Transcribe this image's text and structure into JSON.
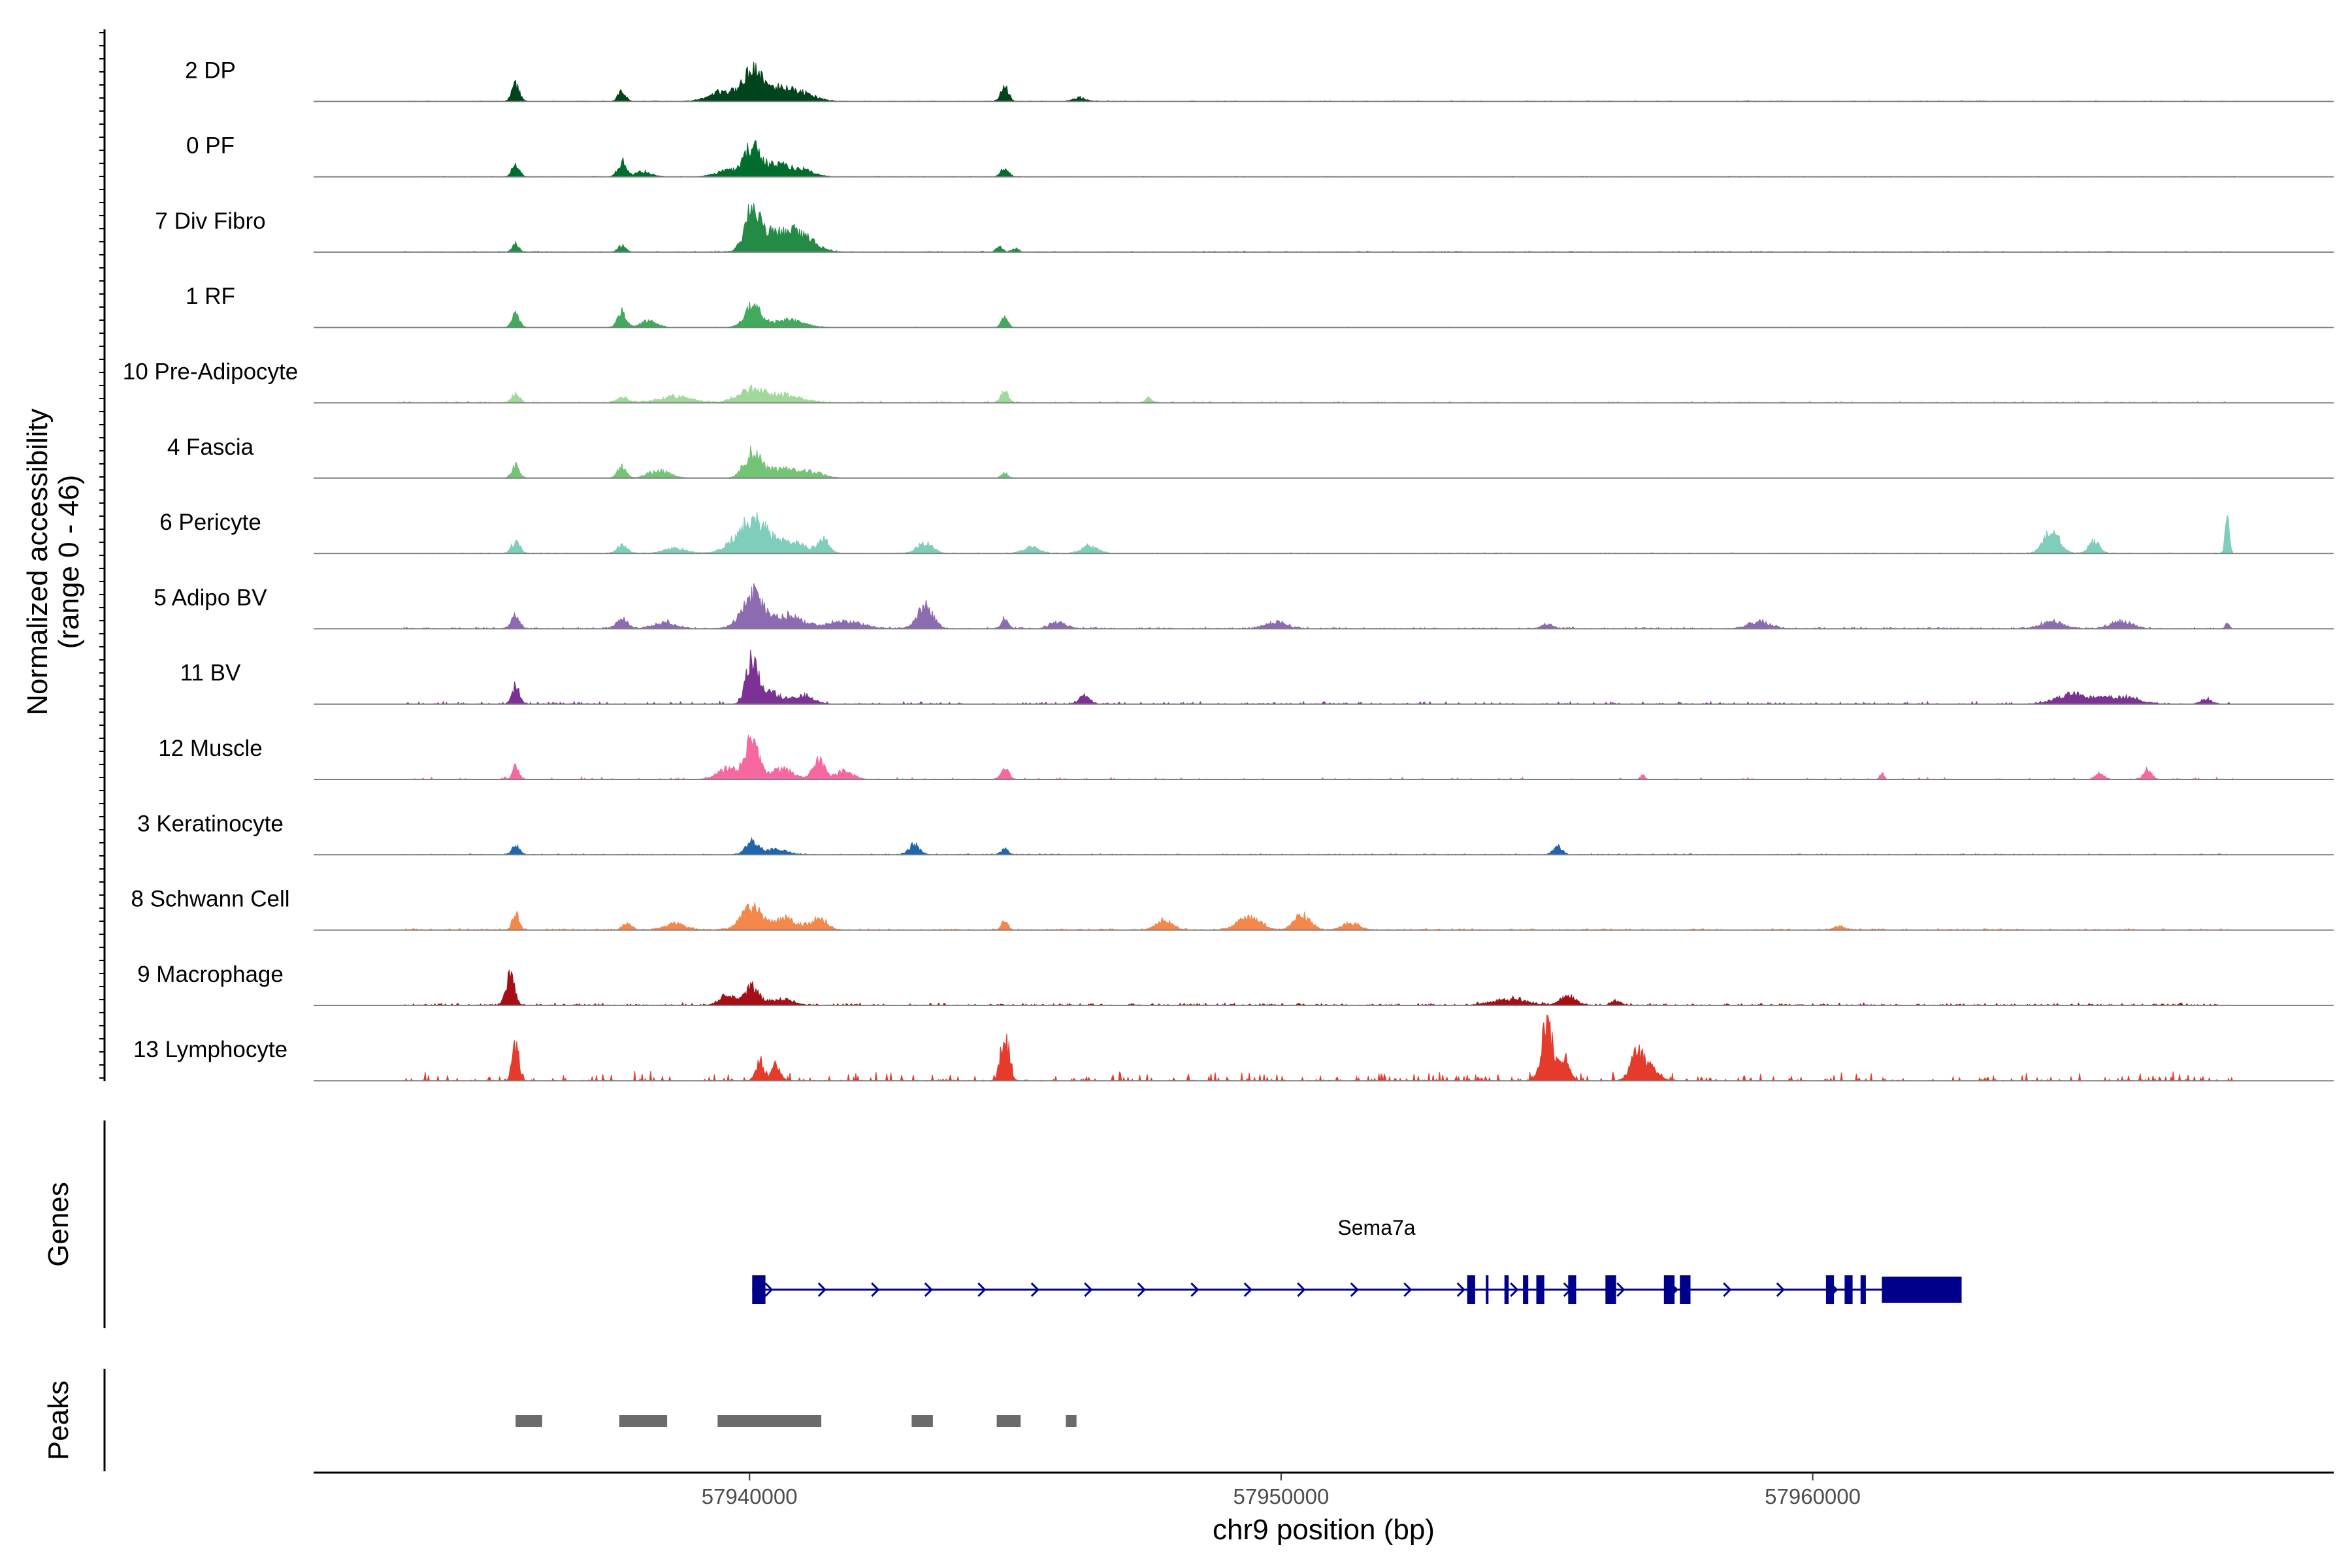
{
  "chart_data": {
    "type": "area",
    "title": "",
    "ylabel_line1": "Normalized accessibility",
    "ylabel_line2": "(range 0 - 46)",
    "xlabel": "chr9 position (bp)",
    "ylim": [
      0,
      46
    ],
    "xlim": [
      57931800,
      57969800
    ],
    "x_ticks": [
      57940000,
      57950000,
      57960000
    ],
    "x_tick_labels": [
      "57940000",
      "57950000",
      "57960000"
    ],
    "genes_label": "Genes",
    "peaks_label": "Peaks",
    "gene": {
      "name": "Sema7a",
      "strand": "+",
      "start": 57940050,
      "end": 57962800,
      "color": "#00008B",
      "exons": [
        [
          57940050,
          57940300
        ],
        [
          57953500,
          57953650
        ],
        [
          57953850,
          57953900
        ],
        [
          57954200,
          57954280
        ],
        [
          57954550,
          57954650
        ],
        [
          57954800,
          57954950
        ],
        [
          57955400,
          57955550
        ],
        [
          57956100,
          57956300
        ],
        [
          57957200,
          57957400
        ],
        [
          57957500,
          57957700
        ],
        [
          57960250,
          57960400
        ],
        [
          57960600,
          57960750
        ],
        [
          57960900,
          57961000
        ],
        [
          57961300,
          57962800
        ]
      ]
    },
    "peaks": [
      [
        57935600,
        57936100
      ],
      [
        57937550,
        57938450
      ],
      [
        57939400,
        57941350
      ],
      [
        57943050,
        57943450
      ],
      [
        57944650,
        57945100
      ],
      [
        57945950,
        57946150
      ]
    ],
    "peak_color": "#6B6B6B",
    "series": [
      {
        "name": "2 DP",
        "color": "#00441B",
        "peaks": [
          [
            57935600,
            13,
            70
          ],
          [
            57937600,
            8,
            70
          ],
          [
            57939500,
            8,
            250
          ],
          [
            57940050,
            21,
            170
          ],
          [
            57940500,
            10,
            300
          ],
          [
            57941000,
            5,
            250
          ],
          [
            57944800,
            12,
            70
          ],
          [
            57946200,
            3,
            120
          ]
        ],
        "noise": 0.6,
        "density": 0.9,
        "range": [
          57933500,
          57968000
        ]
      },
      {
        "name": "0 PF",
        "color": "#006D2C",
        "peaks": [
          [
            57935600,
            10,
            70
          ],
          [
            57937600,
            12,
            80
          ],
          [
            57938000,
            4,
            150
          ],
          [
            57939600,
            5,
            220
          ],
          [
            57940050,
            23,
            140
          ],
          [
            57940500,
            10,
            250
          ],
          [
            57941000,
            5,
            200
          ],
          [
            57944800,
            7,
            70
          ]
        ],
        "noise": 0.5,
        "density": 0.9,
        "range": [
          57933500,
          57968000
        ]
      },
      {
        "name": "7 Div Fibro",
        "color": "#238B45",
        "peaks": [
          [
            57935600,
            7,
            60
          ],
          [
            57937600,
            5,
            70
          ],
          [
            57940050,
            30,
            140
          ],
          [
            57940500,
            15,
            300
          ],
          [
            57941000,
            11,
            250
          ],
          [
            57944700,
            4,
            60
          ],
          [
            57945000,
            3,
            60
          ]
        ],
        "noise": 0.8,
        "density": 0.6,
        "range": [
          57933500,
          57968000
        ]
      },
      {
        "name": "1 RF",
        "color": "#41AB5D",
        "peaks": [
          [
            57935600,
            10,
            70
          ],
          [
            57937600,
            13,
            80
          ],
          [
            57938100,
            5,
            150
          ],
          [
            57940050,
            17,
            150
          ],
          [
            57940700,
            6,
            300
          ],
          [
            57944800,
            8,
            60
          ]
        ],
        "noise": 0.4,
        "density": 0.8,
        "range": [
          57933500,
          57968000
        ]
      },
      {
        "name": "10 Pre-Adipocyte",
        "color": "#A1D99B",
        "peaks": [
          [
            57935600,
            8,
            70
          ],
          [
            57937600,
            4,
            100
          ],
          [
            57938600,
            5,
            300
          ],
          [
            57940050,
            10,
            250
          ],
          [
            57940700,
            6,
            300
          ],
          [
            57944800,
            10,
            70
          ],
          [
            57947500,
            4,
            60
          ]
        ],
        "noise": 1.2,
        "density": 0.6,
        "range": [
          57933300,
          57968000
        ]
      },
      {
        "name": "4 Fascia",
        "color": "#74C476",
        "peaks": [
          [
            57935600,
            10,
            70
          ],
          [
            57937600,
            9,
            80
          ],
          [
            57938300,
            6,
            200
          ],
          [
            57940050,
            20,
            150
          ],
          [
            57940600,
            8,
            300
          ],
          [
            57941200,
            4,
            200
          ],
          [
            57944800,
            4,
            60
          ]
        ],
        "noise": 0.4,
        "density": 0.8,
        "range": [
          57933500,
          57968000
        ]
      },
      {
        "name": "6 Pericyte",
        "color": "#7FCDBB",
        "peaks": [
          [
            57935600,
            10,
            80
          ],
          [
            57937600,
            6,
            100
          ],
          [
            57938600,
            4,
            200
          ],
          [
            57940050,
            26,
            300
          ],
          [
            57940800,
            8,
            300
          ],
          [
            57941400,
            10,
            100
          ],
          [
            57943300,
            8,
            150
          ],
          [
            57945300,
            5,
            150
          ],
          [
            57946400,
            6,
            150
          ],
          [
            57964500,
            17,
            150
          ],
          [
            57965300,
            10,
            100
          ],
          [
            57967800,
            28,
            40
          ]
        ],
        "noise": 0.6,
        "density": 0.8,
        "range": [
          57933500,
          57967900
        ]
      },
      {
        "name": "5 Adipo BV",
        "color": "#8C6BB1",
        "peaks": [
          [
            57935600,
            12,
            70
          ],
          [
            57937600,
            8,
            100
          ],
          [
            57938400,
            5,
            200
          ],
          [
            57940050,
            27,
            200
          ],
          [
            57940700,
            10,
            300
          ],
          [
            57941800,
            6,
            300
          ],
          [
            57943300,
            18,
            150
          ],
          [
            57944800,
            8,
            60
          ],
          [
            57945800,
            5,
            150
          ],
          [
            57949900,
            5,
            200
          ],
          [
            57955000,
            4,
            100
          ],
          [
            57959000,
            6,
            200
          ],
          [
            57964500,
            6,
            200
          ],
          [
            57965800,
            6,
            200
          ],
          [
            57967800,
            4,
            40
          ]
        ],
        "noise": 1.2,
        "density": 0.8,
        "range": [
          57933500,
          57967900
        ]
      },
      {
        "name": "11 BV",
        "color": "#7B3294",
        "peaks": [
          [
            57935600,
            14,
            70
          ],
          [
            57940050,
            35,
            110
          ],
          [
            57940400,
            9,
            200
          ],
          [
            57941000,
            6,
            200
          ],
          [
            57946300,
            6,
            100
          ],
          [
            57964900,
            8,
            300
          ],
          [
            57965800,
            6,
            300
          ],
          [
            57967400,
            4,
            100
          ]
        ],
        "noise": 2.0,
        "density": 0.35,
        "range": [
          57933500,
          57967900
        ]
      },
      {
        "name": "12 Muscle",
        "color": "#F768A1",
        "peaks": [
          [
            57935600,
            11,
            60
          ],
          [
            57939600,
            9,
            200
          ],
          [
            57940050,
            35,
            120
          ],
          [
            57940600,
            9,
            200
          ],
          [
            57941300,
            15,
            120
          ],
          [
            57941800,
            7,
            150
          ],
          [
            57944800,
            8,
            80
          ],
          [
            57956800,
            4,
            40
          ],
          [
            57961300,
            5,
            40
          ],
          [
            57965400,
            5,
            80
          ],
          [
            57966300,
            7,
            80
          ]
        ],
        "noise": 2.0,
        "density": 0.15,
        "range": [
          57933500,
          57967900
        ]
      },
      {
        "name": "3 Keratinocyte",
        "color": "#2166AC",
        "peaks": [
          [
            57935600,
            7,
            70
          ],
          [
            57940050,
            10,
            120
          ],
          [
            57940500,
            4,
            200
          ],
          [
            57943100,
            8,
            100
          ],
          [
            57944800,
            5,
            60
          ],
          [
            57955200,
            7,
            80
          ]
        ],
        "noise": 0.8,
        "density": 0.9,
        "range": [
          57933500,
          57967900
        ]
      },
      {
        "name": "8 Schwann Cell",
        "color": "#F4874A",
        "peaks": [
          [
            57935600,
            14,
            60
          ],
          [
            57937700,
            6,
            80
          ],
          [
            57938600,
            5,
            200
          ],
          [
            57940050,
            18,
            200
          ],
          [
            57940700,
            9,
            200
          ],
          [
            57941300,
            9,
            150
          ],
          [
            57944800,
            8,
            60
          ],
          [
            57947800,
            8,
            150
          ],
          [
            57949400,
            11,
            200
          ],
          [
            57950400,
            12,
            150
          ],
          [
            57951300,
            6,
            150
          ],
          [
            57960500,
            3,
            100
          ]
        ],
        "noise": 1.2,
        "density": 0.6,
        "range": [
          57933500,
          57967900
        ]
      },
      {
        "name": "9 Macrophage",
        "color": "#A50F15",
        "peaks": [
          [
            57935500,
            23,
            80
          ],
          [
            57939600,
            8,
            150
          ],
          [
            57940050,
            15,
            120
          ],
          [
            57940600,
            5,
            200
          ],
          [
            57954300,
            5,
            300
          ],
          [
            57955400,
            7,
            150
          ],
          [
            57956300,
            4,
            80
          ]
        ],
        "noise": 2.0,
        "density": 0.45,
        "range": [
          57933500,
          57967900
        ]
      },
      {
        "name": "13 Lymphocyte",
        "color": "#E53B2C",
        "peaks": [
          [
            57935600,
            28,
            60
          ],
          [
            57940200,
            14,
            80
          ],
          [
            57940500,
            12,
            80
          ],
          [
            57944800,
            34,
            80
          ],
          [
            57955000,
            46,
            100
          ],
          [
            57955300,
            20,
            100
          ],
          [
            57956700,
            25,
            120
          ],
          [
            57957000,
            10,
            120
          ]
        ],
        "noise": 7.0,
        "density": 0.25,
        "range": [
          57933500,
          57967900
        ]
      }
    ]
  }
}
